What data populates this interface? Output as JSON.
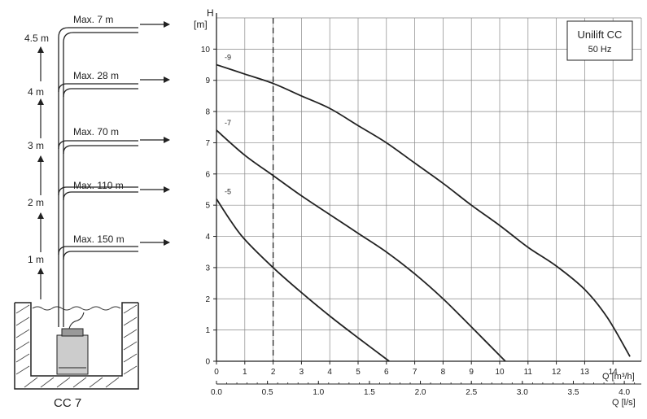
{
  "installation": {
    "pump_model": "CC 7",
    "height_marks": [
      "1 m",
      "2 m",
      "3 m",
      "4 m",
      "4.5 m"
    ],
    "max_lengths": [
      "Max. 150 m",
      "Max. 110 m",
      "Max. 70 m",
      "Max. 28 m",
      "Max. 7 m"
    ]
  },
  "legend": {
    "product": "Unilift CC",
    "frequency": "50 Hz"
  },
  "chart_data": {
    "type": "line",
    "title": "",
    "ylabel": "H",
    "yunit": "[m]",
    "xlabel": "Q [m³/h]",
    "x2label": "Q [l/s]",
    "xlim": [
      0,
      15
    ],
    "ylim": [
      0,
      11
    ],
    "x_ticks": [
      0,
      1,
      2,
      3,
      4,
      5,
      6,
      7,
      8,
      9,
      10,
      11,
      12,
      13,
      14
    ],
    "y_ticks": [
      0,
      1,
      2,
      3,
      4,
      5,
      6,
      7,
      8,
      9,
      10
    ],
    "x2_ticks": [
      "0.0",
      "0.5",
      "1.0",
      "1.5",
      "2.0",
      "2.5",
      "3.0",
      "3.5",
      "4.0"
    ],
    "x2_values": [
      0,
      0.5,
      1.0,
      1.5,
      2.0,
      2.5,
      3.0,
      3.5,
      4.0
    ],
    "grid": true,
    "reference_line_x": 2,
    "series": [
      {
        "name": "-5",
        "x": [
          0,
          0.5,
          1,
          2,
          3,
          4,
          5,
          6.1
        ],
        "y": [
          5.2,
          4.5,
          3.9,
          3.0,
          2.2,
          1.45,
          0.75,
          0
        ]
      },
      {
        "name": "-7",
        "x": [
          0,
          1,
          2,
          3,
          4,
          5,
          6,
          7,
          8,
          9,
          10.2
        ],
        "y": [
          7.4,
          6.6,
          5.95,
          5.3,
          4.7,
          4.1,
          3.5,
          2.8,
          2.0,
          1.1,
          0
        ]
      },
      {
        "name": "-9",
        "x": [
          0,
          1,
          2,
          3,
          4,
          5,
          6,
          7,
          8,
          9,
          10,
          11,
          12,
          13,
          13.8,
          14.6
        ],
        "y": [
          9.5,
          9.2,
          8.9,
          8.5,
          8.1,
          7.55,
          7.0,
          6.35,
          5.7,
          5.0,
          4.35,
          3.65,
          3.05,
          2.3,
          1.4,
          0.15
        ]
      }
    ]
  }
}
